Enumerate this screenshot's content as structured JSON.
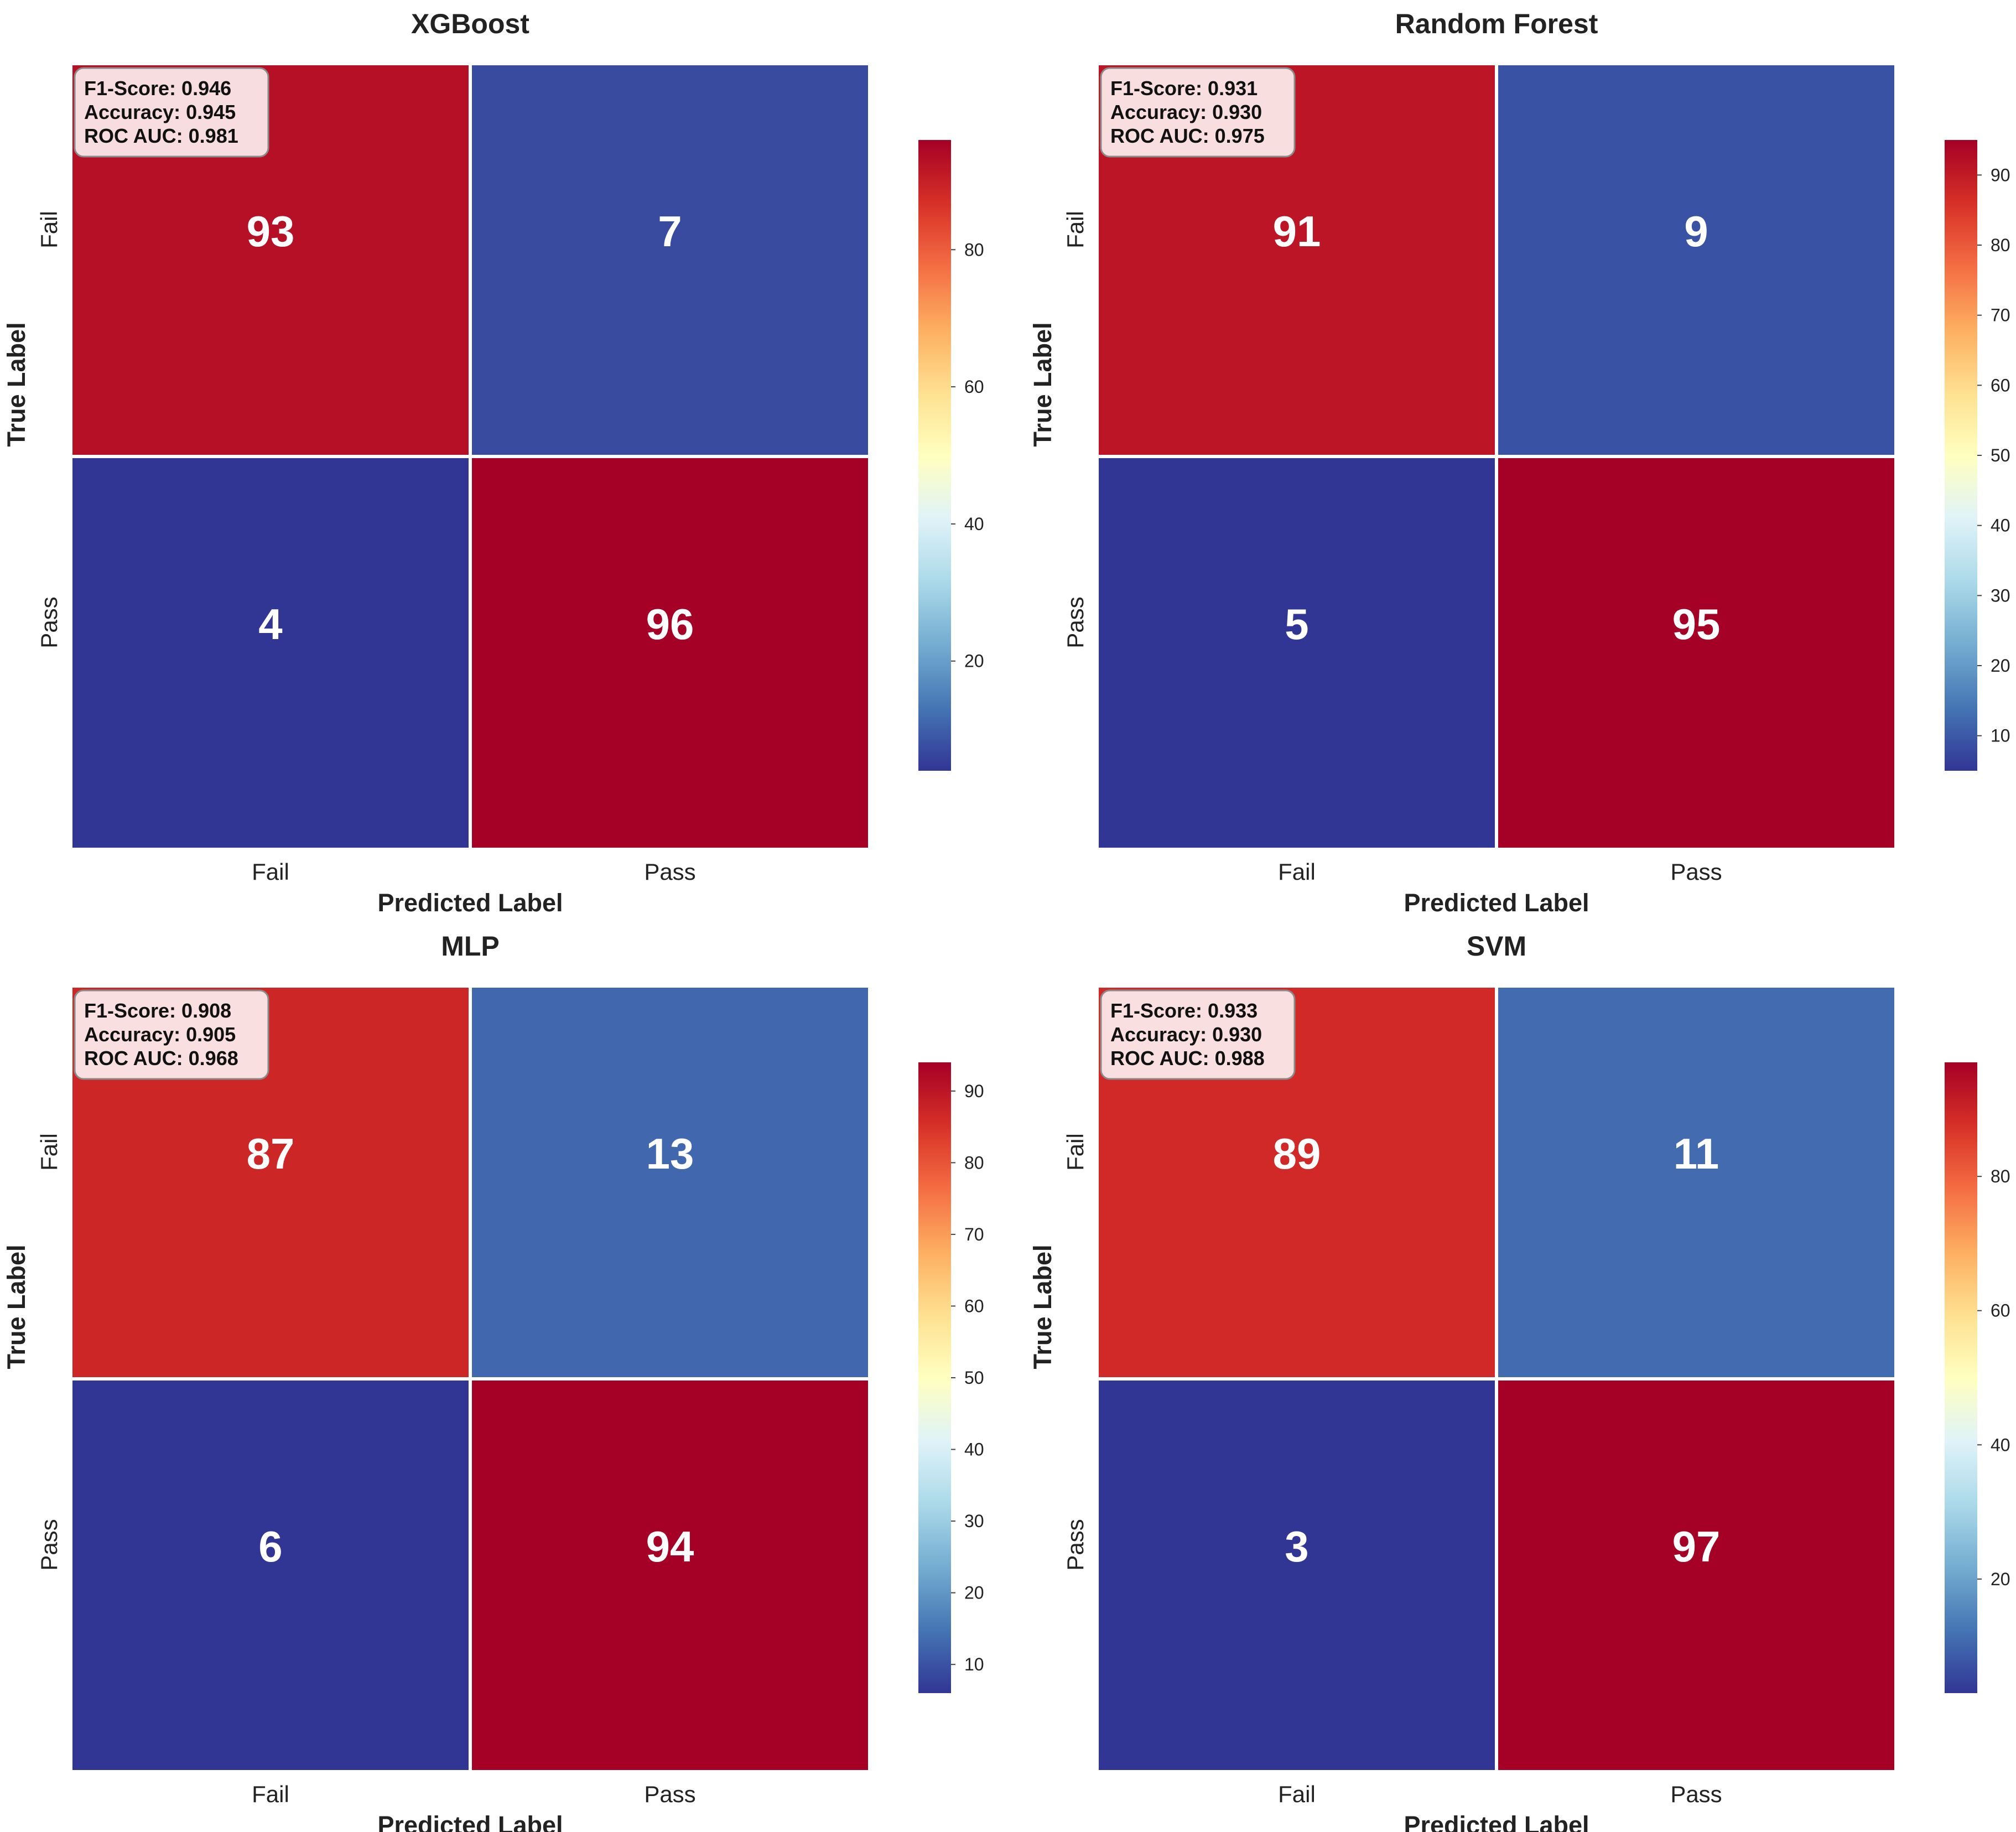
{
  "chart_data": [
    {
      "type": "heatmap",
      "title": "XGBoost",
      "xlabel": "Predicted Label",
      "ylabel": "True Label",
      "x_categories": [
        "Fail",
        "Pass"
      ],
      "y_categories": [
        "Fail",
        "Pass"
      ],
      "matrix": [
        [
          93,
          7
        ],
        [
          4,
          96
        ]
      ],
      "metrics": [
        "F1-Score: 0.946",
        "Accuracy: 0.945",
        "ROC AUC: 0.981"
      ],
      "colorbar": {
        "range": [
          4,
          96
        ],
        "ticks": [
          20,
          40,
          60,
          80
        ]
      }
    },
    {
      "type": "heatmap",
      "title": "Random Forest",
      "xlabel": "Predicted Label",
      "ylabel": "True Label",
      "x_categories": [
        "Fail",
        "Pass"
      ],
      "y_categories": [
        "Fail",
        "Pass"
      ],
      "matrix": [
        [
          91,
          9
        ],
        [
          5,
          95
        ]
      ],
      "metrics": [
        "F1-Score: 0.931",
        "Accuracy: 0.930",
        "ROC AUC: 0.975"
      ],
      "colorbar": {
        "range": [
          5,
          95
        ],
        "ticks": [
          10,
          20,
          30,
          40,
          50,
          60,
          70,
          80,
          90
        ]
      }
    },
    {
      "type": "heatmap",
      "title": "MLP",
      "xlabel": "Predicted Label",
      "ylabel": "True Label",
      "x_categories": [
        "Fail",
        "Pass"
      ],
      "y_categories": [
        "Fail",
        "Pass"
      ],
      "matrix": [
        [
          87,
          13
        ],
        [
          6,
          94
        ]
      ],
      "metrics": [
        "F1-Score: 0.908",
        "Accuracy: 0.905",
        "ROC AUC: 0.968"
      ],
      "colorbar": {
        "range": [
          6,
          94
        ],
        "ticks": [
          10,
          20,
          30,
          40,
          50,
          60,
          70,
          80,
          90
        ]
      }
    },
    {
      "type": "heatmap",
      "title": "SVM",
      "xlabel": "Predicted Label",
      "ylabel": "True Label",
      "x_categories": [
        "Fail",
        "Pass"
      ],
      "y_categories": [
        "Fail",
        "Pass"
      ],
      "matrix": [
        [
          89,
          11
        ],
        [
          3,
          97
        ]
      ],
      "metrics": [
        "F1-Score: 0.933",
        "Accuracy: 0.930",
        "ROC AUC: 0.988"
      ],
      "colorbar": {
        "range": [
          3,
          97
        ],
        "ticks": [
          20,
          40,
          60,
          80
        ]
      }
    }
  ],
  "colormap": {
    "name": "RdYlBu_r",
    "stops": [
      "#313695",
      "#4575b4",
      "#74add1",
      "#abd9e9",
      "#e0f3f8",
      "#ffffbf",
      "#fee090",
      "#fdae61",
      "#f46d43",
      "#d73027",
      "#a50026"
    ]
  }
}
